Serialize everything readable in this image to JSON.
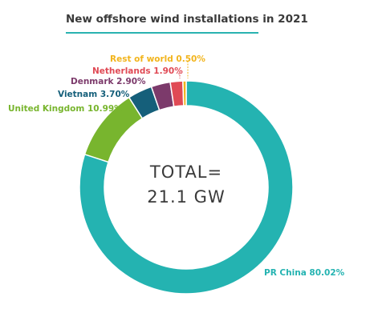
{
  "chart_data": {
    "type": "pie",
    "title": "New offshore wind installations in 2021",
    "center_label": [
      "TOTAL=",
      "21.1 GW"
    ],
    "slices": [
      {
        "name": "PR China",
        "value": 80.02,
        "label": "PR China 80.02%",
        "color": "#24b3b1"
      },
      {
        "name": "United Kingdom",
        "value": 10.99,
        "label": "United Kingdom 10.99%",
        "color": "#78b52e"
      },
      {
        "name": "Vietnam",
        "value": 3.7,
        "label": "Vietnam 3.70%",
        "color": "#155f7a"
      },
      {
        "name": "Denmark",
        "value": 2.9,
        "label": "Denmark 2.90%",
        "color": "#7c3a6b"
      },
      {
        "name": "Netherlands",
        "value": 1.9,
        "label": "Netherlands 1.90%",
        "color": "#e04a55"
      },
      {
        "name": "Rest of world",
        "value": 0.5,
        "label": "Rest of world 0.50%",
        "color": "#f2b41c"
      }
    ]
  }
}
